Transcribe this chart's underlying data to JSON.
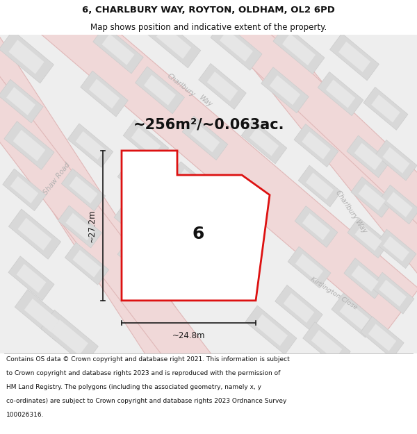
{
  "title_line1": "6, CHARLBURY WAY, ROYTON, OLDHAM, OL2 6PD",
  "title_line2": "Map shows position and indicative extent of the property.",
  "area_text": "~256m²/~0.063ac.",
  "label_number": "6",
  "dim_height": "~27.2m",
  "dim_width": "~24.8m",
  "footer_lines": [
    "Contains OS data © Crown copyright and database right 2021. This information is subject",
    "to Crown copyright and database rights 2023 and is reproduced with the permission of",
    "HM Land Registry. The polygons (including the associated geometry, namely x, y",
    "co-ordinates) are subject to Crown copyright and database rights 2023 Ordnance Survey",
    "100026316."
  ],
  "bg_color": "#efefef",
  "property_fill": "#ffffff",
  "property_edge": "#dd1111",
  "property_lw": 2.0,
  "road_fill": "#f5dada",
  "road_edge": "#e8b0b0",
  "block_fill": "#d8d8d8",
  "block_fill2": "#e4e4e4",
  "street_color": "#b0b0b0",
  "dim_color": "#1a1a1a",
  "title_color": "#111111",
  "footer_color": "#111111",
  "area_fontsize": 15,
  "label_fontsize": 18,
  "dim_fontsize": 8.5,
  "title_fontsize1": 9.5,
  "title_fontsize2": 8.5,
  "footer_fontsize": 6.5
}
